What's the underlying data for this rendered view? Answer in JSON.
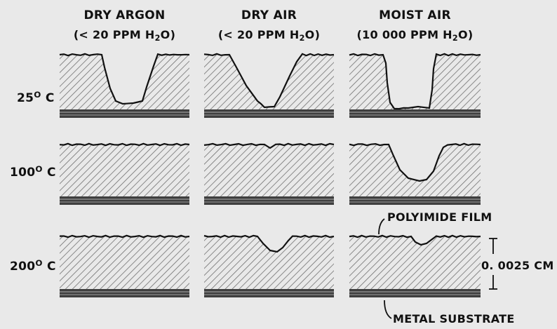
{
  "columns": [
    {
      "title": "DRY ARGON",
      "sub_open": "(< 20 PPM H",
      "sub_digit": "2",
      "sub_close": "O)"
    },
    {
      "title": "DRY AIR",
      "sub_open": "(< 20 PPM H",
      "sub_digit": "2",
      "sub_close": "O)"
    },
    {
      "title": "MOIST AIR",
      "sub_open": "(10 000 PPM H",
      "sub_digit": "2",
      "sub_close": "O)"
    }
  ],
  "rows": [
    {
      "num": "25",
      "sup": "O",
      "unit": " C"
    },
    {
      "num": "100",
      "sup": "O",
      "unit": " C"
    },
    {
      "num": "200",
      "sup": "O",
      "unit": " C"
    }
  ],
  "callouts": {
    "film": "POLYIMIDE FILM",
    "thickness": "0. 0025 CM",
    "substrate": "METAL SUBSTRATE"
  },
  "colors": {
    "background": "#e9e9e9",
    "ink": "#111111",
    "hatch": "#6f6f6f",
    "substrate": "#4a4a4a"
  }
}
